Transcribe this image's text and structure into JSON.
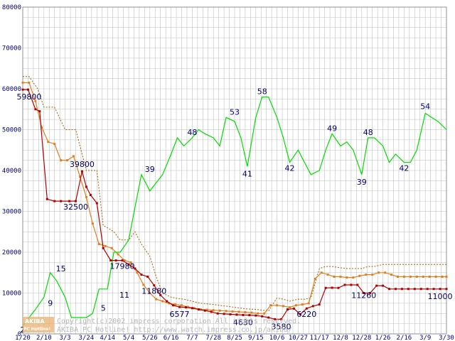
{
  "chart_data": {
    "type": "line",
    "x": [
      "1/20",
      "2/10",
      "3/3",
      "3/24",
      "4/14",
      "5/4",
      "5/26",
      "6/16",
      "7/7",
      "7/28",
      "8/25",
      "9/15",
      "10/6",
      "10/27",
      "11/17",
      "12/8",
      "12/28",
      "1/26",
      "2/16",
      "3/9",
      "3/30"
    ],
    "y_ticks": [
      "0",
      "10000",
      "20000",
      "30000",
      "40000",
      "50000",
      "60000",
      "70000",
      "80000"
    ],
    "ylim": [
      0,
      80000
    ],
    "grid": true,
    "colors": {
      "min_price": "#b00000",
      "avg_price": "#e08020",
      "max_price": "#a06000",
      "shop_count": "#00dd00",
      "grid": "#c0c0c0",
      "labels": "#000066"
    },
    "series": [
      {
        "key": "min_price",
        "x": [
          0,
          0.25,
          0.6,
          0.8,
          1.15,
          1.5,
          1.8,
          2.2,
          2.5,
          2.8,
          3.0,
          3.2,
          3.5,
          3.8,
          4.15,
          4.4,
          4.7,
          5.0,
          5.3,
          5.6,
          5.9,
          6.2,
          6.5,
          6.8,
          7.1,
          7.4,
          7.7,
          8.0,
          8.3,
          8.6,
          8.9,
          9.2,
          9.5,
          9.8,
          10.1,
          10.4,
          10.7,
          11.0,
          11.3,
          11.6,
          11.9,
          12.2,
          12.5,
          12.8,
          13.1,
          13.4,
          13.7,
          14.0,
          14.3,
          14.6,
          14.9,
          15.2,
          15.5,
          15.8,
          16.1,
          16.4,
          16.7,
          17.0,
          17.3,
          17.6,
          17.9,
          18.2,
          18.5,
          18.8,
          19.1,
          19.4,
          19.7,
          20.0
        ],
        "values": [
          59800,
          59800,
          55000,
          54500,
          33000,
          32500,
          32500,
          32500,
          32500,
          39800,
          36000,
          34000,
          32000,
          21000,
          18000,
          17980,
          17980,
          17000,
          16000,
          14500,
          14000,
          11880,
          9500,
          8000,
          7000,
          6577,
          6500,
          6300,
          6000,
          5700,
          5400,
          5000,
          4900,
          4800,
          4700,
          4630,
          4600,
          4500,
          4300,
          4000,
          3600,
          3580,
          6000,
          6200,
          4800,
          6220,
          6800,
          7200,
          11260,
          11300,
          11260,
          12000,
          12000,
          12000,
          10000,
          10000,
          11800,
          11800,
          11000,
          11000,
          11000,
          11000,
          11000,
          11000,
          11000,
          11000,
          11000,
          11000
        ]
      },
      {
        "key": "avg_price",
        "x": [
          0,
          0.3,
          0.6,
          0.9,
          1.2,
          1.5,
          1.8,
          2.1,
          2.4,
          2.7,
          3.0,
          3.3,
          3.6,
          3.9,
          4.2,
          4.5,
          4.8,
          5.1,
          5.4,
          5.7,
          6.0,
          6.3,
          6.6,
          6.9,
          7.2,
          7.5,
          7.8,
          8.1,
          8.4,
          8.7,
          9.0,
          9.3,
          9.6,
          9.9,
          10.2,
          10.5,
          10.8,
          11.1,
          11.4,
          11.7,
          12.0,
          12.3,
          12.6,
          12.9,
          13.2,
          13.5,
          13.8,
          14.1,
          14.4,
          14.7,
          15.0,
          15.3,
          15.6,
          15.9,
          16.2,
          16.5,
          16.8,
          17.1,
          17.4,
          17.7,
          18.0,
          18.3,
          18.6,
          18.9,
          19.2,
          19.5,
          19.8,
          20.0
        ],
        "values": [
          61500,
          61500,
          57000,
          50500,
          47000,
          46500,
          42500,
          42500,
          43500,
          38500,
          33500,
          27000,
          22000,
          21500,
          21000,
          19500,
          18000,
          17500,
          15000,
          12000,
          10000,
          8500,
          8000,
          7500,
          7200,
          7000,
          6600,
          6300,
          6000,
          5900,
          5800,
          5700,
          5600,
          5500,
          5400,
          5300,
          5200,
          5000,
          5000,
          7000,
          7000,
          6800,
          6500,
          7000,
          7200,
          7500,
          13500,
          15000,
          14500,
          14000,
          14000,
          13800,
          13800,
          14200,
          14500,
          14500,
          15000,
          15000,
          14500,
          14000,
          14000,
          14000,
          14000,
          14000,
          14000,
          14000,
          14000,
          14000
        ]
      },
      {
        "key": "max_price",
        "x": [
          0,
          0.3,
          0.7,
          1.0,
          1.5,
          2.0,
          2.5,
          3.0,
          3.5,
          3.8,
          4.0,
          4.3,
          4.6,
          5.0,
          5.3,
          5.6,
          6.0,
          6.3,
          6.6,
          7.0,
          7.3,
          7.6,
          8.0,
          8.3,
          8.6,
          9.0,
          9.3,
          9.6,
          10.0,
          10.3,
          10.6,
          11.0,
          11.3,
          11.6,
          12.0,
          12.3,
          12.6,
          13.0,
          13.3,
          13.6,
          14.0,
          14.3,
          14.6,
          15.0,
          15.3,
          15.6,
          16.0,
          16.3,
          16.6,
          17.0,
          17.3,
          17.6,
          18.0,
          18.3,
          18.6,
          19.0,
          19.3,
          19.6,
          20.0
        ],
        "values": [
          63000,
          63000,
          60000,
          55500,
          55500,
          50000,
          50000,
          40000,
          40000,
          26500,
          26000,
          25000,
          23000,
          23000,
          25000,
          22000,
          19000,
          14000,
          10000,
          9000,
          8700,
          8500,
          8000,
          7600,
          7400,
          7200,
          7000,
          6800,
          6500,
          6300,
          6100,
          6000,
          5800,
          5600,
          8800,
          8500,
          8000,
          8500,
          8500,
          8800,
          16000,
          16500,
          16500,
          16200,
          16000,
          16000,
          16000,
          16500,
          16500,
          17000,
          17000,
          17000,
          17000,
          17000,
          17000,
          17000,
          17000,
          17000,
          17000
        ]
      },
      {
        "key": "shop_count",
        "x": [
          0,
          0.3,
          0.6,
          1.0,
          1.3,
          1.6,
          2.0,
          2.3,
          2.7,
          3.0,
          3.3,
          3.6,
          4.0,
          4.3,
          4.6,
          5.0,
          5.3,
          5.6,
          6.0,
          6.3,
          6.6,
          7.0,
          7.3,
          7.6,
          8.0,
          8.3,
          8.6,
          9.0,
          9.3,
          9.6,
          10.0,
          10.3,
          10.6,
          11.0,
          11.3,
          11.6,
          12.0,
          12.3,
          12.6,
          13.0,
          13.3,
          13.6,
          14.0,
          14.3,
          14.6,
          15.0,
          15.3,
          15.6,
          16.0,
          16.3,
          16.6,
          17.0,
          17.3,
          17.6,
          18.0,
          18.3,
          18.6,
          19.0,
          19.3,
          19.6,
          20.0
        ],
        "values": [
          2,
          4,
          6,
          9,
          15,
          13,
          9,
          4,
          4,
          4,
          5,
          11,
          11,
          20,
          20,
          23,
          31,
          39,
          35,
          37,
          39,
          44,
          48,
          46,
          48,
          50,
          49,
          48,
          46,
          53,
          52,
          48,
          41,
          53,
          58,
          58,
          53,
          48,
          42,
          45,
          42,
          39,
          40,
          45,
          49,
          46,
          47,
          45,
          39,
          48,
          48,
          46,
          42,
          44,
          42,
          42,
          45,
          54,
          53,
          52,
          50
        ]
      }
    ],
    "data_labels": [
      {
        "text": "59800",
        "x": 0.3,
        "y": 59800,
        "dy": 14
      },
      {
        "text": "32500",
        "x": 2.5,
        "y": 32500,
        "dy": 12
      },
      {
        "text": "39800",
        "x": 2.8,
        "y": 39800,
        "dy": -6
      },
      {
        "text": "17980",
        "x": 4.7,
        "y": 17980,
        "dy": 12
      },
      {
        "text": "11880",
        "x": 6.2,
        "y": 11880,
        "dy": 12
      },
      {
        "text": "6577",
        "x": 7.4,
        "y": 6577,
        "dy": 14
      },
      {
        "text": "4630",
        "x": 10.4,
        "y": 4630,
        "dy": 14
      },
      {
        "text": "3580",
        "x": 12.2,
        "y": 3580,
        "dy": 14
      },
      {
        "text": "6220",
        "x": 13.4,
        "y": 6220,
        "dy": 12
      },
      {
        "text": "11260",
        "x": 16.1,
        "y": 11260,
        "dy": 14
      },
      {
        "text": "11000",
        "x": 19.7,
        "y": 11000,
        "dy": 14
      },
      {
        "text": "2",
        "x": 0.0,
        "y": 0,
        "dy": 2
      },
      {
        "text": "9",
        "x": 1.3,
        "y": 9000,
        "dy": 12
      },
      {
        "text": "15",
        "x": 1.8,
        "y": 15000,
        "dy": -2
      },
      {
        "text": "5",
        "x": 3.8,
        "y": 5000,
        "dy": -4
      },
      {
        "text": "11",
        "x": 4.8,
        "y": 11000,
        "dy": 12
      },
      {
        "text": "39",
        "x": 6.0,
        "y": 39000,
        "dy": -4
      },
      {
        "text": "48",
        "x": 8.0,
        "y": 48000,
        "dy": -4
      },
      {
        "text": "53",
        "x": 10.0,
        "y": 53000,
        "dy": -4
      },
      {
        "text": "41",
        "x": 10.6,
        "y": 41000,
        "dy": 14
      },
      {
        "text": "58",
        "x": 11.3,
        "y": 58000,
        "dy": -4
      },
      {
        "text": "42",
        "x": 12.6,
        "y": 42000,
        "dy": 12
      },
      {
        "text": "49",
        "x": 14.6,
        "y": 49000,
        "dy": -4
      },
      {
        "text": "48",
        "x": 16.3,
        "y": 48000,
        "dy": -4
      },
      {
        "text": "39",
        "x": 16.0,
        "y": 39000,
        "dy": 14
      },
      {
        "text": "42",
        "x": 18.0,
        "y": 42000,
        "dy": 12
      },
      {
        "text": "54",
        "x": 19.0,
        "y": 54000,
        "dy": -6
      }
    ]
  },
  "watermark": {
    "logo_top": "AKIBA",
    "logo_bottom": "PC Hotline!",
    "line1": "Copyright(c)2002 impress corporation All rights reserved.",
    "line2": "AKIBA PC Hotline!  http://www.watch.impress.co.jp/akiba/"
  }
}
